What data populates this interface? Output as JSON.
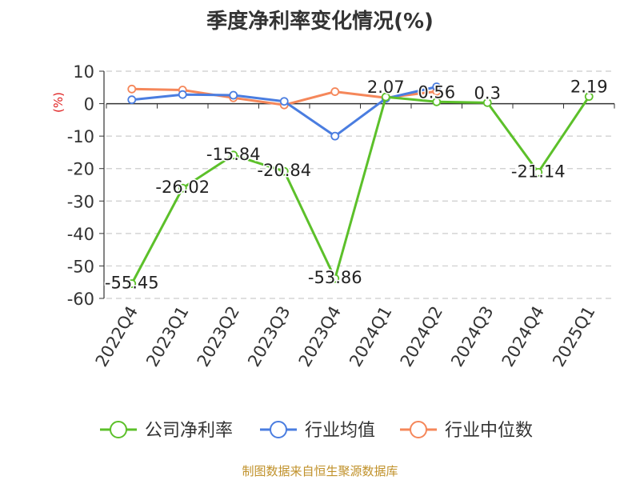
{
  "chart_data": {
    "type": "line",
    "title": "季度净利率变化情况(%)",
    "ylabel": "(%)",
    "xlabel": "",
    "categories": [
      "2022Q4",
      "2023Q1",
      "2023Q2",
      "2023Q3",
      "2023Q4",
      "2024Q1",
      "2024Q2",
      "2024Q3",
      "2024Q4",
      "2025Q1"
    ],
    "ylim": [
      -60,
      10
    ],
    "yticks": [
      10,
      0,
      -10,
      -20,
      -30,
      -40,
      -50,
      -60
    ],
    "grid": true,
    "legend_position": "bottom",
    "series": [
      {
        "name": "公司净利率",
        "color": "#5cc02a",
        "values": [
          -55.45,
          -26.02,
          -15.84,
          -20.84,
          -53.86,
          2.07,
          0.56,
          0.3,
          -21.14,
          2.19
        ],
        "labels": [
          "-55.45",
          "-26.02",
          "-15.84",
          "-20.84",
          "-53.86",
          "2.07",
          "0.56",
          "0.3",
          "-21.14",
          "2.19"
        ]
      },
      {
        "name": "行业均值",
        "color": "#4a7de0",
        "values": [
          1.2,
          2.8,
          2.6,
          0.7,
          -10.0,
          1.6,
          5.2,
          null,
          null,
          null
        ]
      },
      {
        "name": "行业中位数",
        "color": "#f5875a",
        "values": [
          4.5,
          4.2,
          1.8,
          -0.4,
          3.7,
          1.8,
          3.8,
          null,
          null,
          null
        ]
      }
    ],
    "source": "制图数据来自恒生聚源数据库"
  }
}
